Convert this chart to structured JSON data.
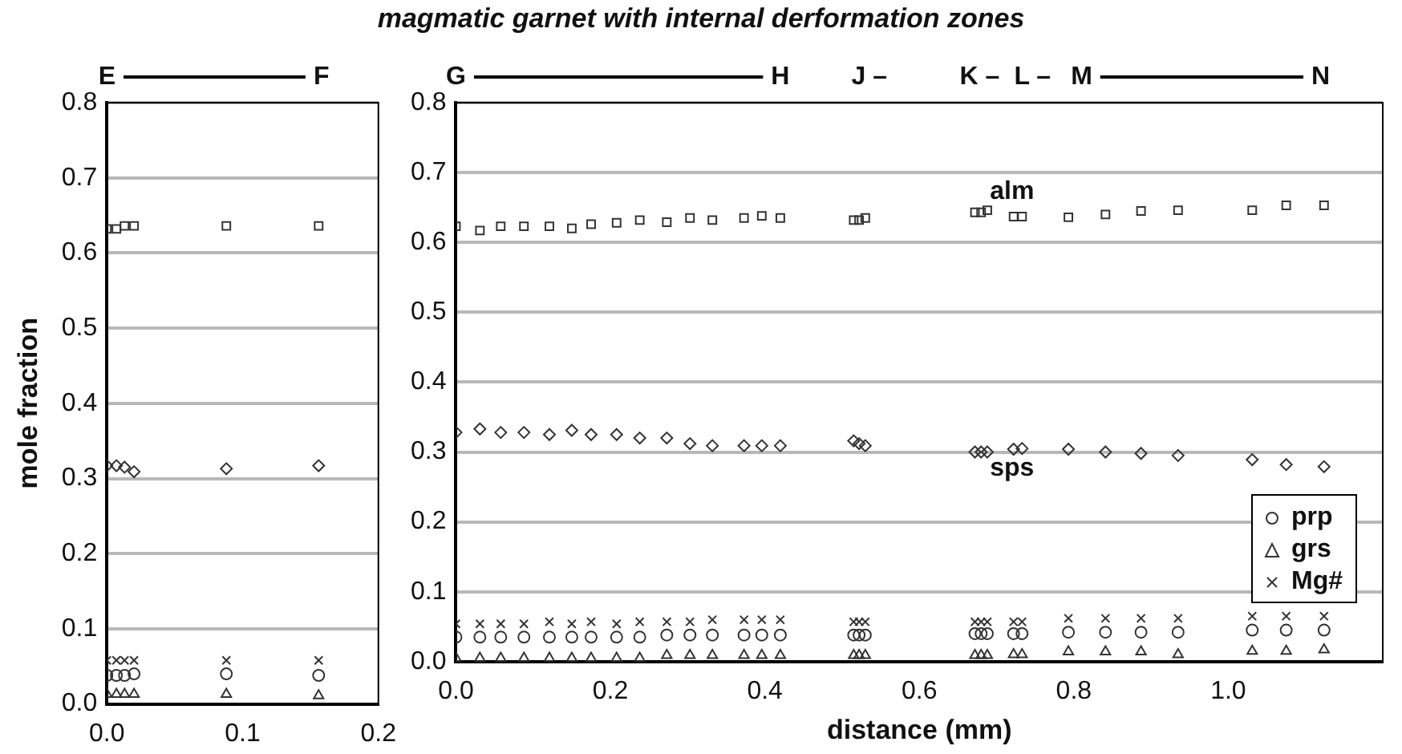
{
  "chart_data": [
    {
      "type": "scatter",
      "ylabel": "mole fraction",
      "x": [
        0,
        0.007,
        0.013,
        0.02,
        0.088,
        0.156
      ],
      "xlim": [
        0,
        0.2
      ],
      "xticks": [
        {
          "value": 0,
          "label": "0.0"
        },
        0.1,
        0.2
      ],
      "ylim": [
        0,
        0.8
      ],
      "yticks": [
        {
          "value": 0,
          "label": "0.0"
        },
        0.1,
        0.2,
        0.3,
        0.4,
        0.5,
        0.6,
        0.7,
        0.8
      ],
      "grid": "y",
      "legend": false,
      "annotations": [
        "E",
        "F"
      ],
      "series": [
        {
          "color": "#333333",
          "marker": "square",
          "values": [
            0.632,
            0.632,
            0.636,
            0.636,
            0.636,
            0.636
          ]
        },
        {
          "color": "#333333",
          "marker": "diamond",
          "values": [
            0.317,
            0.317,
            0.315,
            0.309,
            0.313,
            0.317
          ]
        },
        {
          "color": "#333333",
          "marker": "circle",
          "values": [
            0.038,
            0.038,
            0.038,
            0.04,
            0.04,
            0.038
          ]
        },
        {
          "color": "#333333",
          "marker": "triangle",
          "values": [
            0.013,
            0.013,
            0.013,
            0.013,
            0.013,
            0.011
          ]
        },
        {
          "color": "#333333",
          "marker": "cross",
          "values": [
            0.058,
            0.058,
            0.058,
            0.058,
            0.058,
            0.058
          ]
        }
      ]
    },
    {
      "type": "scatter",
      "title": "magmatic garnet with internal derformation zones",
      "xlabel": "distance (mm)",
      "x": [
        0,
        0.031,
        0.058,
        0.088,
        0.121,
        0.15,
        0.175,
        0.208,
        0.238,
        0.273,
        0.303,
        0.332,
        0.373,
        0.396,
        0.42,
        0.515,
        0.522,
        0.53,
        0.672,
        0.68,
        0.688,
        0.722,
        0.733,
        0.793,
        0.841,
        0.887,
        0.935,
        1.031,
        1.075,
        1.124
      ],
      "xlim": [
        0,
        1.2
      ],
      "xticks": [
        {
          "value": 0,
          "label": "0.0"
        },
        0.2,
        0.4,
        0.6,
        0.8,
        {
          "value": 1,
          "label": "1.0"
        },
        {
          "value": 1.2,
          "label": null
        }
      ],
      "ylim": [
        0,
        0.8
      ],
      "yticks": [
        {
          "value": 0,
          "label": "0.0"
        },
        0.1,
        0.2,
        0.3,
        0.4,
        0.5,
        0.6,
        0.7,
        0.8
      ],
      "grid": "y",
      "legend": "bottom right",
      "annotations": [
        "G",
        "H",
        "J –",
        "K –",
        "L –",
        "M",
        "N",
        "alm",
        "sps"
      ],
      "series": [
        {
          "color": "#333333",
          "marker": "square",
          "values": [
            0.623,
            0.617,
            0.623,
            0.623,
            0.623,
            0.62,
            0.626,
            0.628,
            0.632,
            0.629,
            0.635,
            0.632,
            0.635,
            0.638,
            0.635,
            0.632,
            0.632,
            0.635,
            0.643,
            0.643,
            0.646,
            0.637,
            0.637,
            0.636,
            0.64,
            0.645,
            0.646,
            0.646,
            0.653,
            0.653
          ]
        },
        {
          "color": "#333333",
          "marker": "diamond",
          "values": [
            0.328,
            0.333,
            0.328,
            0.328,
            0.325,
            0.331,
            0.325,
            0.325,
            0.32,
            0.32,
            0.312,
            0.309,
            0.309,
            0.309,
            0.309,
            0.316,
            0.312,
            0.309,
            0.3,
            0.3,
            0.3,
            0.304,
            0.305,
            0.304,
            0.3,
            0.298,
            0.295,
            0.289,
            0.282,
            0.279
          ]
        },
        {
          "name": "prp",
          "color": "#333333",
          "marker": "circle",
          "values": [
            0.035,
            0.035,
            0.035,
            0.035,
            0.035,
            0.035,
            0.035,
            0.035,
            0.035,
            0.038,
            0.038,
            0.038,
            0.038,
            0.038,
            0.038,
            0.038,
            0.038,
            0.038,
            0.04,
            0.04,
            0.04,
            0.04,
            0.04,
            0.042,
            0.042,
            0.042,
            0.042,
            0.045,
            0.045,
            0.045
          ]
        },
        {
          "name": "grs",
          "color": "#333333",
          "marker": "triangle",
          "values": [
            0.005,
            0.005,
            0.005,
            0.005,
            0.005,
            0.005,
            0.005,
            0.005,
            0.005,
            0.009,
            0.009,
            0.009,
            0.009,
            0.009,
            0.009,
            0.009,
            0.009,
            0.009,
            0.009,
            0.009,
            0.009,
            0.01,
            0.01,
            0.014,
            0.014,
            0.014,
            0.01,
            0.015,
            0.015,
            0.017
          ]
        },
        {
          "name": "Mg#",
          "color": "#333333",
          "marker": "cross",
          "values": [
            0.054,
            0.054,
            0.054,
            0.054,
            0.057,
            0.054,
            0.057,
            0.054,
            0.057,
            0.057,
            0.057,
            0.06,
            0.06,
            0.06,
            0.06,
            0.057,
            0.057,
            0.057,
            0.057,
            0.057,
            0.057,
            0.057,
            0.057,
            0.062,
            0.062,
            0.062,
            0.062,
            0.065,
            0.065,
            0.065
          ]
        }
      ]
    }
  ]
}
